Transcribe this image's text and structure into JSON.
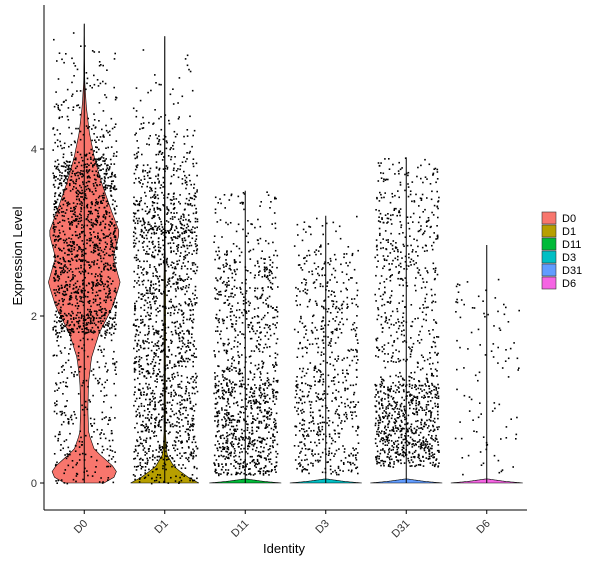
{
  "chart_data": {
    "type": "violin",
    "xlabel": "Identity",
    "ylabel": "Expression Level",
    "ylim": [
      -0.3,
      5.7
    ],
    "yticks": [
      0,
      2,
      4
    ],
    "grid": false,
    "legend_position": "right",
    "categories": [
      "D0",
      "D1",
      "D11",
      "D3",
      "D31",
      "D6"
    ],
    "series": [
      {
        "name": "D0",
        "color": "#F8766D",
        "max": 5.5,
        "points_approx": 3400,
        "density": [
          [
            0.0,
            0.55
          ],
          [
            0.1,
            0.95
          ],
          [
            0.2,
            0.8
          ],
          [
            0.4,
            0.28
          ],
          [
            0.6,
            0.12
          ],
          [
            0.9,
            0.1
          ],
          [
            1.2,
            0.12
          ],
          [
            1.5,
            0.2
          ],
          [
            1.8,
            0.42
          ],
          [
            2.1,
            0.78
          ],
          [
            2.4,
            1.0
          ],
          [
            2.7,
            0.8
          ],
          [
            3.0,
            0.98
          ],
          [
            3.3,
            0.72
          ],
          [
            3.6,
            0.48
          ],
          [
            3.9,
            0.28
          ],
          [
            4.2,
            0.14
          ],
          [
            4.5,
            0.06
          ],
          [
            4.8,
            0.015
          ],
          [
            5.2,
            0.005
          ],
          [
            5.5,
            0.0
          ]
        ]
      },
      {
        "name": "D1",
        "color": "#B79F00",
        "max": 5.35,
        "points_approx": 3300,
        "density": [
          [
            0.0,
            0.95
          ],
          [
            0.08,
            0.6
          ],
          [
            0.2,
            0.25
          ],
          [
            0.35,
            0.05
          ],
          [
            0.6,
            0.02
          ],
          [
            1.0,
            0.02
          ],
          [
            1.5,
            0.02
          ],
          [
            2.0,
            0.025
          ],
          [
            2.5,
            0.02
          ],
          [
            3.0,
            0.01
          ],
          [
            4.0,
            0.004
          ],
          [
            5.35,
            0.0
          ]
        ]
      },
      {
        "name": "D11",
        "color": "#00BA38",
        "max": 3.5,
        "points_approx": 2200,
        "density": [
          [
            0.0,
            1.0
          ],
          [
            0.02,
            0.5
          ],
          [
            0.05,
            0.0
          ]
        ]
      },
      {
        "name": "D3",
        "color": "#00BFC4",
        "max": 3.2,
        "points_approx": 1300,
        "density": [
          [
            0.0,
            1.0
          ],
          [
            0.02,
            0.5
          ],
          [
            0.05,
            0.0
          ]
        ]
      },
      {
        "name": "D31",
        "color": "#619CFF",
        "max": 3.9,
        "points_approx": 2300,
        "density": [
          [
            0.0,
            1.0
          ],
          [
            0.02,
            0.5
          ],
          [
            0.05,
            0.0
          ]
        ]
      },
      {
        "name": "D6",
        "color": "#F564E3",
        "max": 2.85,
        "points_approx": 200,
        "density": [
          [
            0.0,
            1.0
          ],
          [
            0.02,
            0.5
          ],
          [
            0.05,
            0.0
          ]
        ]
      }
    ]
  }
}
